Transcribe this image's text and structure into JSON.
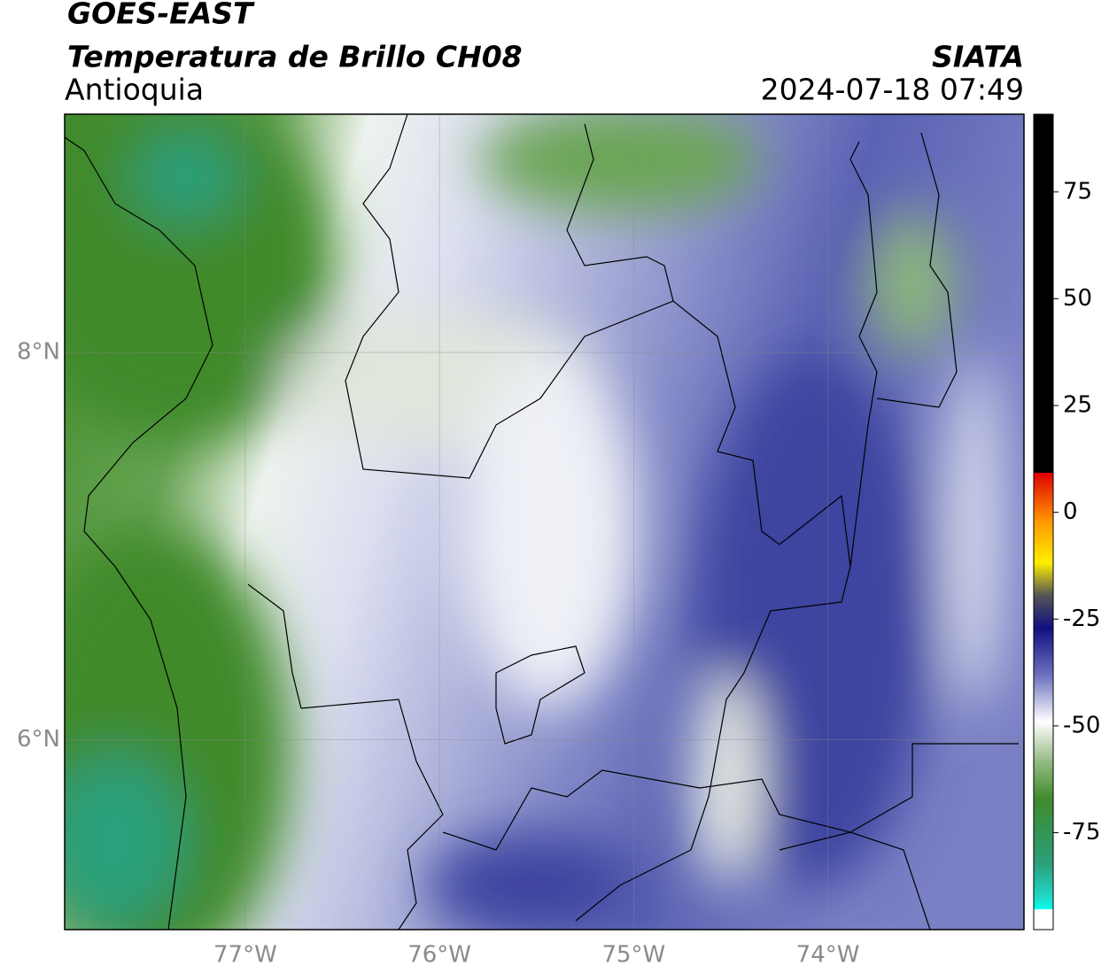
{
  "map": {
    "title": "GOES-EAST",
    "subtitle": "Temperatura de Brillo CH08",
    "region": "Antioquia",
    "source": "SIATA",
    "datetime": "2024-07-18 07:49",
    "xlim": [
      -77.93,
      -72.99
    ],
    "ylim": [
      5.02,
      9.23
    ],
    "xticks": [
      {
        "value": -77,
        "label": "77°W"
      },
      {
        "value": -76,
        "label": "76°W"
      },
      {
        "value": -75,
        "label": "75°W"
      },
      {
        "value": -74,
        "label": "74°W"
      }
    ],
    "yticks": [
      {
        "value": 8,
        "label": "8°N"
      },
      {
        "value": 6,
        "label": "6°N"
      }
    ],
    "grid": true,
    "colorbar": {
      "lim": [
        -97.7,
        93.2
      ],
      "ticks": [
        75,
        50,
        25,
        0,
        -25,
        -50,
        -75
      ]
    }
  }
}
